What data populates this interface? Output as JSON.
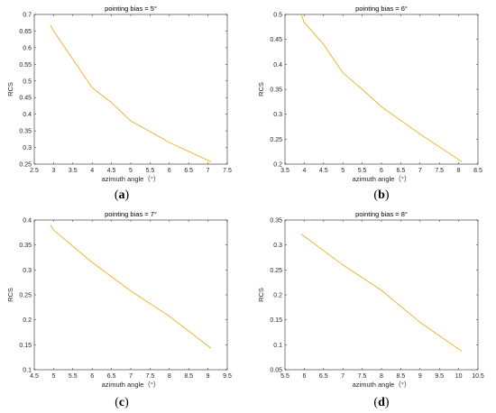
{
  "chart_data": [
    {
      "type": "line",
      "title": "pointing bias = 5°",
      "xlabel": "azimuth angle（°）",
      "ylabel": "RCS",
      "caption_letter": "a",
      "xlim": [
        2.5,
        7.5
      ],
      "ylim": [
        0.25,
        0.7
      ],
      "xticks": [
        "2.5",
        "3",
        "3.5",
        "4",
        "4.5",
        "5",
        "5.5",
        "6",
        "6.5",
        "7",
        "7.5"
      ],
      "yticks": [
        "0.25",
        "0.3",
        "0.35",
        "0.4",
        "0.45",
        "0.5",
        "0.55",
        "0.6",
        "0.65",
        "0.7"
      ],
      "color": "#EDB120",
      "series": [
        {
          "x": [
            2.92,
            3.0,
            4.0,
            4.5,
            5.0,
            6.0,
            7.08
          ],
          "y": [
            0.668,
            0.65,
            0.48,
            0.435,
            0.38,
            0.315,
            0.257
          ]
        }
      ]
    },
    {
      "type": "line",
      "title": "pointing bias = 6°",
      "xlabel": "azimuth angle（°）",
      "ylabel": "RCS",
      "caption_letter": "b",
      "xlim": [
        3.5,
        8.5
      ],
      "ylim": [
        0.2,
        0.5
      ],
      "xticks": [
        "3.5",
        "4",
        "4.5",
        "5",
        "5.5",
        "6",
        "6.5",
        "7",
        "7.5",
        "8",
        "8.5"
      ],
      "yticks": [
        "0.2",
        "0.25",
        "0.3",
        "0.35",
        "0.4",
        "0.45",
        "0.5"
      ],
      "color": "#EDB120",
      "series": [
        {
          "x": [
            3.92,
            4.0,
            4.5,
            5.0,
            5.5,
            6.0,
            7.0,
            8.08
          ],
          "y": [
            0.5,
            0.484,
            0.44,
            0.383,
            0.35,
            0.315,
            0.26,
            0.205
          ]
        }
      ]
    },
    {
      "type": "line",
      "title": "pointing bias = 7°",
      "xlabel": "azimuth angle（°）",
      "ylabel": "RCS",
      "caption_letter": "c",
      "xlim": [
        4.5,
        9.5
      ],
      "ylim": [
        0.1,
        0.4
      ],
      "xticks": [
        "4.5",
        "5",
        "5.5",
        "6",
        "6.5",
        "7",
        "7.5",
        "8",
        "8.5",
        "9",
        "9.5"
      ],
      "yticks": [
        "0.1",
        "0.15",
        "0.2",
        "0.25",
        "0.3",
        "0.35",
        "0.4"
      ],
      "color": "#EDB120",
      "series": [
        {
          "x": [
            4.92,
            5.0,
            6.0,
            7.0,
            8.0,
            9.08
          ],
          "y": [
            0.39,
            0.38,
            0.315,
            0.258,
            0.207,
            0.143
          ]
        }
      ]
    },
    {
      "type": "line",
      "title": "pointing bias = 8°",
      "xlabel": "azimuth angle（°）",
      "ylabel": "RCS",
      "caption_letter": "d",
      "xlim": [
        5.5,
        10.5
      ],
      "ylim": [
        0.05,
        0.35
      ],
      "xticks": [
        "5.5",
        "6",
        "6.5",
        "7",
        "7.5",
        "8",
        "8.5",
        "9",
        "9.5",
        "10",
        "10.5"
      ],
      "yticks": [
        "0.05",
        "0.1",
        "0.15",
        "0.2",
        "0.25",
        "0.3",
        "0.35"
      ],
      "color": "#EDB120",
      "series": [
        {
          "x": [
            5.92,
            7.0,
            8.0,
            9.0,
            10.08
          ],
          "y": [
            0.322,
            0.26,
            0.209,
            0.145,
            0.087
          ]
        }
      ]
    }
  ]
}
